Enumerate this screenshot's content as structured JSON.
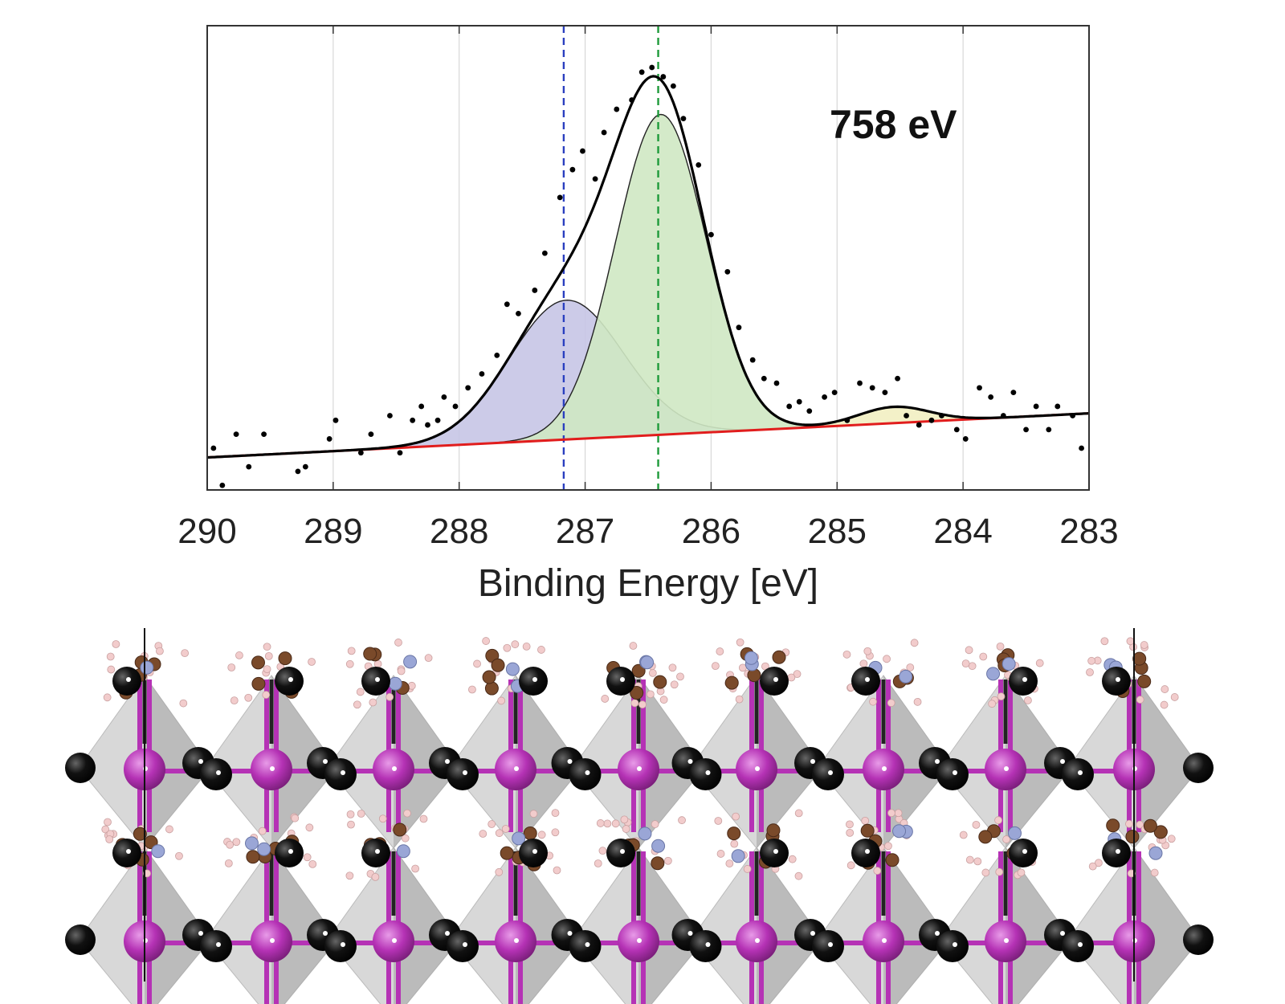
{
  "chart_data": {
    "type": "line",
    "title": "",
    "annotation": "758 eV",
    "xlabel": "Binding Energy [eV]",
    "ylabel": "",
    "xlim": [
      290,
      283
    ],
    "x_reversed": true,
    "ylim": [
      0,
      1
    ],
    "y_ticks_shown": false,
    "grid": "vertical",
    "xticks": [
      290,
      289,
      288,
      287,
      286,
      285,
      284,
      283
    ],
    "xtick_labels": [
      "290",
      "289",
      "288",
      "287",
      "286",
      "285",
      "284",
      "283"
    ],
    "background": {
      "name": "Shirley background",
      "color": "#e11d1d",
      "x": [
        290,
        283
      ],
      "y": [
        0.07,
        0.165
      ]
    },
    "components": [
      {
        "name": "peak 1",
        "center": 287.15,
        "height": 0.3,
        "sigma": 0.45,
        "fill": "#c7c5e6",
        "stroke": "#222222"
      },
      {
        "name": "peak 2",
        "center": 286.4,
        "height": 0.69,
        "sigma": 0.36,
        "fill": "#cfe8c3",
        "stroke": "#222222"
      },
      {
        "name": "peak 3",
        "center": 284.55,
        "height": 0.035,
        "sigma": 0.28,
        "fill": "#f2f0c2",
        "stroke": "#222222"
      }
    ],
    "envelope": {
      "name": "fit envelope",
      "color": "#000000"
    },
    "reference_lines": [
      {
        "x": 287.17,
        "color": "#2a3fbf",
        "style": "dashed"
      },
      {
        "x": 286.42,
        "color": "#1e9a3a",
        "style": "dashed"
      }
    ],
    "measured_points": {
      "name": "data",
      "x": [
        289.95,
        289.88,
        289.77,
        289.67,
        289.55,
        289.28,
        289.22,
        289.03,
        288.98,
        288.78,
        288.7,
        288.55,
        288.47,
        288.37,
        288.3,
        288.25,
        288.17,
        288.12,
        288.03,
        287.93,
        287.82,
        287.7,
        287.62,
        287.53,
        287.4,
        287.32,
        287.2,
        287.1,
        287.02,
        286.92,
        286.85,
        286.75,
        286.63,
        286.55,
        286.47,
        286.38,
        286.3,
        286.22,
        286.1,
        286.0,
        285.87,
        285.78,
        285.67,
        285.58,
        285.48,
        285.38,
        285.3,
        285.22,
        285.1,
        285.02,
        284.92,
        284.82,
        284.72,
        284.62,
        284.52,
        284.45,
        284.35,
        284.25,
        284.17,
        284.05,
        283.98,
        283.87,
        283.78,
        283.68,
        283.6,
        283.5,
        283.42,
        283.32,
        283.25,
        283.13,
        283.06
      ],
      "y": [
        0.09,
        0.01,
        0.12,
        0.05,
        0.12,
        0.04,
        0.05,
        0.11,
        0.15,
        0.08,
        0.12,
        0.16,
        0.08,
        0.15,
        0.18,
        0.14,
        0.15,
        0.2,
        0.18,
        0.22,
        0.25,
        0.29,
        0.4,
        0.38,
        0.43,
        0.51,
        0.63,
        0.69,
        0.73,
        0.67,
        0.77,
        0.82,
        0.84,
        0.9,
        0.91,
        0.89,
        0.87,
        0.8,
        0.7,
        0.55,
        0.47,
        0.35,
        0.28,
        0.24,
        0.23,
        0.18,
        0.19,
        0.17,
        0.2,
        0.21,
        0.15,
        0.23,
        0.22,
        0.21,
        0.24,
        0.16,
        0.14,
        0.15,
        0.16,
        0.13,
        0.11,
        0.22,
        0.2,
        0.16,
        0.21,
        0.13,
        0.18,
        0.13,
        0.18,
        0.16,
        0.09
      ]
    }
  },
  "structure_image": {
    "label": "layered hybrid perovskite crystal structure",
    "legend": {
      "octahedron_center": "#b532b5",
      "halide": "#111111",
      "carbon": "#7a4a2a",
      "nitrogen": "#9aa6d6",
      "hydrogen": "#f2cccc",
      "octahedron_face": "#a8a8a8"
    }
  }
}
